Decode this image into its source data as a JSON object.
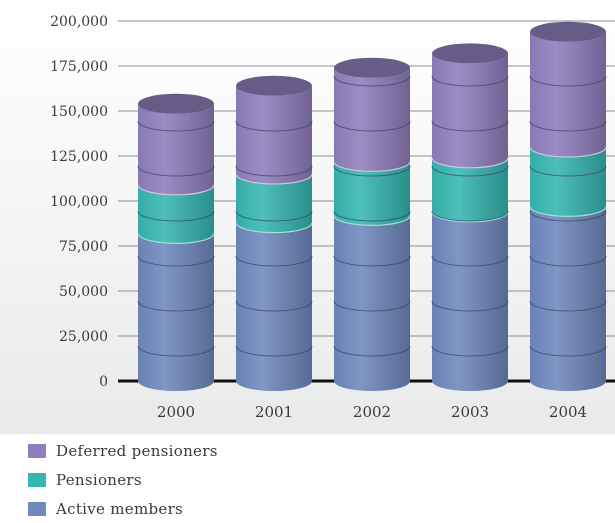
{
  "chart_data": {
    "type": "bar",
    "stacked": true,
    "categories": [
      "2000",
      "2001",
      "2002",
      "2003",
      "2004"
    ],
    "series": [
      {
        "name": "Active members",
        "values": [
          82000,
          88000,
          92000,
          94000,
          97000
        ],
        "color": "#6f88bd"
      },
      {
        "name": "Pensioners",
        "values": [
          27000,
          27000,
          30000,
          30000,
          33000
        ],
        "color": "#36b6b0"
      },
      {
        "name": "Deferred pensioners",
        "values": [
          45000,
          49000,
          52000,
          58000,
          64000
        ],
        "color": "#8f7ebd"
      }
    ],
    "title": "",
    "xlabel": "",
    "ylabel": "",
    "ylim": [
      0,
      200000
    ],
    "yticks": [
      "0",
      "25,000",
      "50,000",
      "75,000",
      "100,000",
      "125,000",
      "150,000",
      "175,000",
      "200,000"
    ],
    "grid": true,
    "legend": "bottom-left"
  }
}
